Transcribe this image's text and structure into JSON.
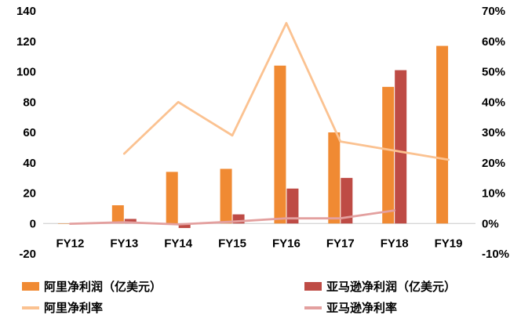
{
  "chart_data": {
    "type": "combo",
    "title": "",
    "categories": [
      "FY12",
      "FY13",
      "FY14",
      "FY15",
      "FY16",
      "FY17",
      "FY18",
      "FY19"
    ],
    "series": [
      {
        "name": "阿里净利润（亿美元）",
        "type": "bar",
        "axis": "left",
        "color": "#F08A33",
        "values": [
          0,
          12,
          34,
          36,
          104,
          60,
          90,
          117
        ]
      },
      {
        "name": "亚马逊净利润（亿美元）",
        "type": "bar",
        "axis": "left",
        "color": "#BE4B45",
        "values": [
          -0.4,
          3,
          -3,
          6,
          23,
          30,
          101,
          null
        ]
      },
      {
        "name": "阿里净利率",
        "type": "line",
        "axis": "right",
        "color": "#FBC291",
        "values": [
          null,
          23,
          40,
          29,
          66,
          27,
          24,
          21
        ]
      },
      {
        "name": "亚马逊净利率",
        "type": "line",
        "axis": "right",
        "color": "#E3A09F",
        "values": [
          -0.1,
          0.4,
          -0.3,
          0.6,
          1.7,
          1.7,
          4.3,
          null
        ]
      }
    ],
    "left_axis": {
      "min": -20,
      "max": 140,
      "step": 20,
      "ticks": [
        "140",
        "120",
        "100",
        "80",
        "60",
        "40",
        "20",
        "0",
        "-20"
      ]
    },
    "right_axis": {
      "min": -10,
      "max": 70,
      "step": 10,
      "suffix": "%",
      "ticks": [
        "70%",
        "60%",
        "50%",
        "40%",
        "30%",
        "20%",
        "10%",
        "0%",
        "-10%"
      ]
    },
    "grid": false,
    "legend_position": "bottom"
  }
}
